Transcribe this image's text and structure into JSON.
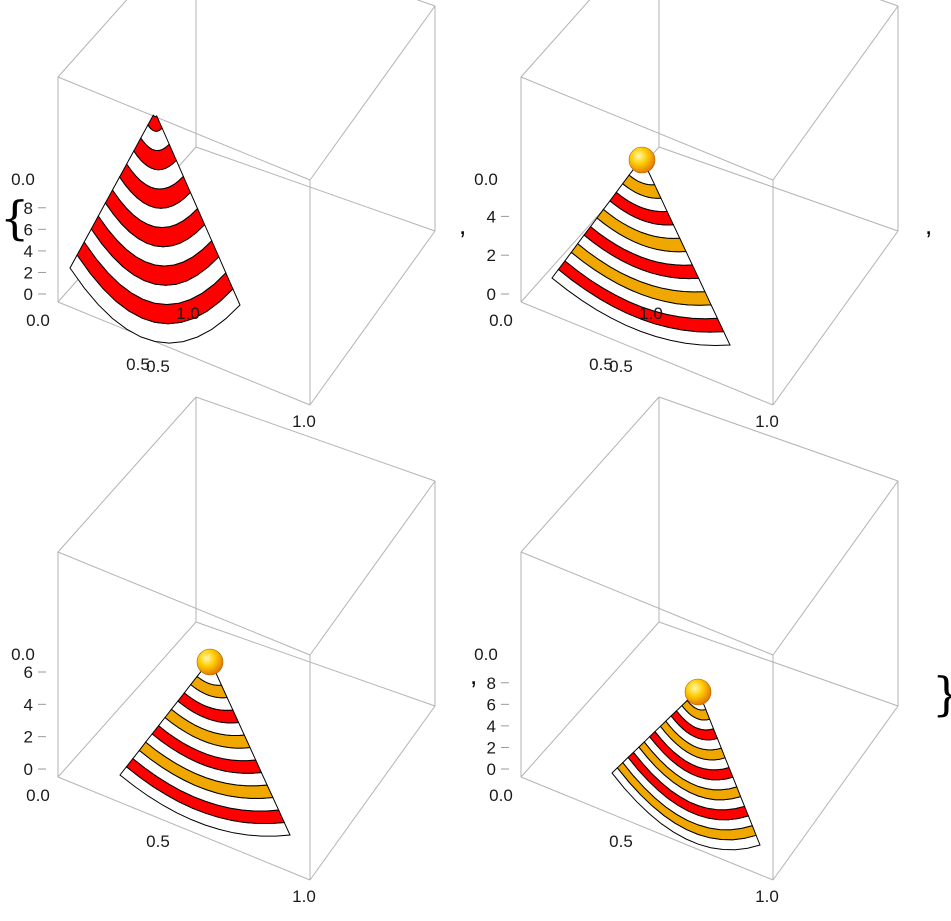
{
  "chart_data": [
    {
      "type": "surface3d",
      "surface": "banded-cone",
      "band_colors": [
        "#ff0000",
        "#ffee00"
      ],
      "x_axis": {
        "range": [
          0,
          1
        ],
        "ticks": [
          "0.0",
          "0.5",
          "1.0"
        ]
      },
      "y_axis": {
        "range": [
          0,
          1
        ],
        "ticks": [
          "0.0",
          "0.5",
          "1.0"
        ]
      },
      "z_axis": {
        "range": [
          0,
          9
        ],
        "ticks": [
          "0",
          "2",
          "4",
          "6",
          "8"
        ]
      },
      "bands": 12,
      "apex_sphere": false
    },
    {
      "type": "surface3d",
      "surface": "banded-cone",
      "band_colors": [
        "#ff0000",
        "#ffffff"
      ],
      "x_axis": {
        "range": [
          0,
          1
        ],
        "ticks": [
          "0.0",
          "0.5",
          "1.0"
        ]
      },
      "y_axis": {
        "range": [
          0,
          1
        ],
        "ticks": [
          "0.0",
          "0.5",
          "1.0"
        ]
      },
      "z_axis": {
        "range": [
          0,
          5
        ],
        "ticks": [
          "0",
          "2",
          "4"
        ]
      },
      "bands": 14,
      "apex_sphere": true
    },
    {
      "type": "surface3d",
      "surface": "banded-cone",
      "band_colors": [
        "#ff0000",
        "#ffffff"
      ],
      "x_axis": {
        "range": [
          0,
          1
        ],
        "ticks": [
          "0.0",
          "0.5",
          "1.0"
        ]
      },
      "y_axis": {
        "range": [
          0,
          1
        ],
        "ticks": [
          "0.0",
          "0.5",
          "1.0"
        ]
      },
      "z_axis": {
        "range": [
          0,
          6
        ],
        "ticks": [
          "0",
          "2",
          "4",
          "6"
        ]
      },
      "bands": 14,
      "apex_sphere": true
    },
    {
      "type": "surface3d",
      "surface": "banded-cone",
      "band_colors": [
        "#ff0000",
        "#ffffff"
      ],
      "x_axis": {
        "range": [
          0,
          1
        ],
        "ticks": [
          "0.0",
          "0.5",
          "1.0"
        ]
      },
      "y_axis": {
        "range": [
          0,
          1
        ],
        "ticks": [
          "0.0",
          "0.5",
          "1.0"
        ]
      },
      "z_axis": {
        "range": [
          0,
          9
        ],
        "ticks": [
          "0",
          "2",
          "4",
          "6",
          "8"
        ]
      },
      "bands": 16,
      "apex_sphere": true
    }
  ],
  "list_syntax": {
    "open": "{",
    "separator": ",",
    "close": "}"
  }
}
